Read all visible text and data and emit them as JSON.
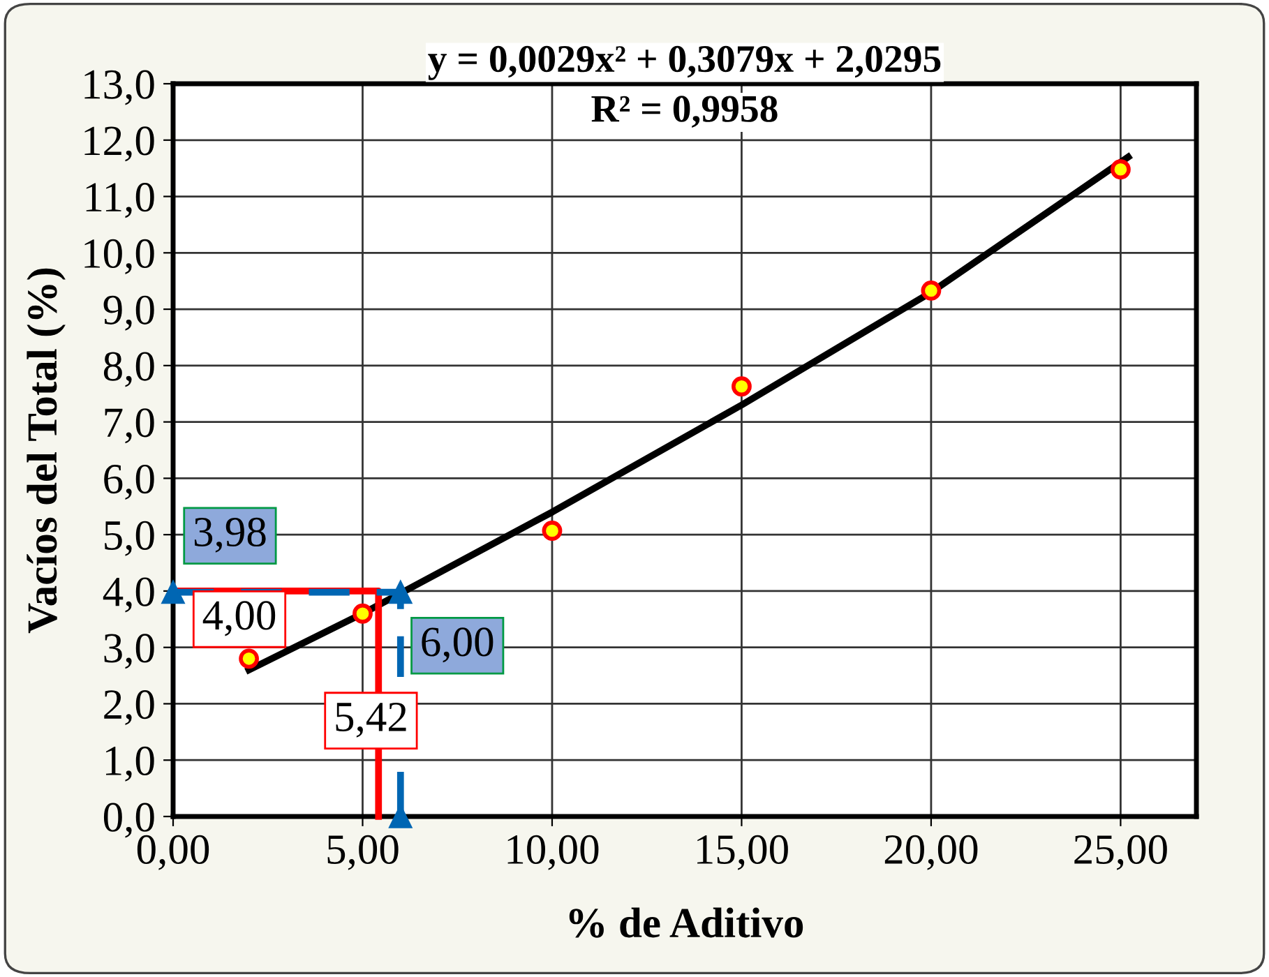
{
  "chart_data": {
    "type": "scatter",
    "xlabel": "% de Aditivo",
    "ylabel": "Vacíos del Total (%)",
    "series": [
      {
        "type": "scatter",
        "color": "#ffff00",
        "x": [
          2,
          5,
          10,
          15,
          20,
          25
        ],
        "values": [
          2.8,
          3.6,
          5.07,
          7.63,
          9.33,
          11.48
        ],
        "marker": "circle"
      },
      {
        "type": "line",
        "color": "#000000",
        "x": [
          2,
          5,
          10,
          15,
          20,
          25.2
        ],
        "values": [
          2.6,
          3.6,
          5.4,
          7.3,
          9.3,
          11.7
        ],
        "line_style": "solid"
      },
      {
        "type": "line",
        "color": "#ff0000",
        "x": [
          0,
          5.42,
          5.42
        ],
        "values": [
          4.0,
          4.0,
          0
        ],
        "line_style": "solid"
      },
      {
        "type": "line",
        "color": "#0066b3",
        "x": [
          0,
          6,
          6
        ],
        "values": [
          3.98,
          3.98,
          0
        ],
        "line_style": "dashed",
        "marker": "triangle"
      }
    ],
    "annotations": [
      "y = 0,0029x² + 0,3079x + 2,0295",
      "R² = 0,9958",
      {
        "text": "3,98",
        "x": 0,
        "y": 3.98
      },
      {
        "text": "4,00",
        "x": 0,
        "y": 4.0
      },
      {
        "text": "6,00",
        "x": 6,
        "y": 3.98
      },
      {
        "text": "5,42",
        "x": 5.42,
        "y": 0
      }
    ],
    "xlim": [
      0,
      27
    ],
    "ylim": [
      0,
      13
    ],
    "xticks": [
      {
        "value": 0,
        "label": "0,00"
      },
      {
        "value": 5,
        "label": "5,00"
      },
      {
        "value": 10,
        "label": "10,00"
      },
      {
        "value": 15,
        "label": "15,00"
      },
      {
        "value": 20,
        "label": "20,00"
      },
      {
        "value": 25,
        "label": "25,00"
      }
    ],
    "yticks": [
      {
        "value": 0,
        "label": "0,0"
      },
      {
        "value": 1,
        "label": "1,0"
      },
      {
        "value": 2,
        "label": "2,0"
      },
      {
        "value": 3,
        "label": "3,0"
      },
      {
        "value": 4,
        "label": "4,0"
      },
      {
        "value": 5,
        "label": "5,0"
      },
      {
        "value": 6,
        "label": "6,0"
      },
      {
        "value": 7,
        "label": "7,0"
      },
      {
        "value": 8,
        "label": "8,0"
      },
      {
        "value": 9,
        "label": "9,0"
      },
      {
        "value": 10,
        "label": "10,0"
      },
      {
        "value": 11,
        "label": "11,0"
      },
      {
        "value": 12,
        "label": "12,0"
      },
      {
        "value": 13,
        "label": "13,0"
      }
    ],
    "grid": true,
    "legend": false
  }
}
